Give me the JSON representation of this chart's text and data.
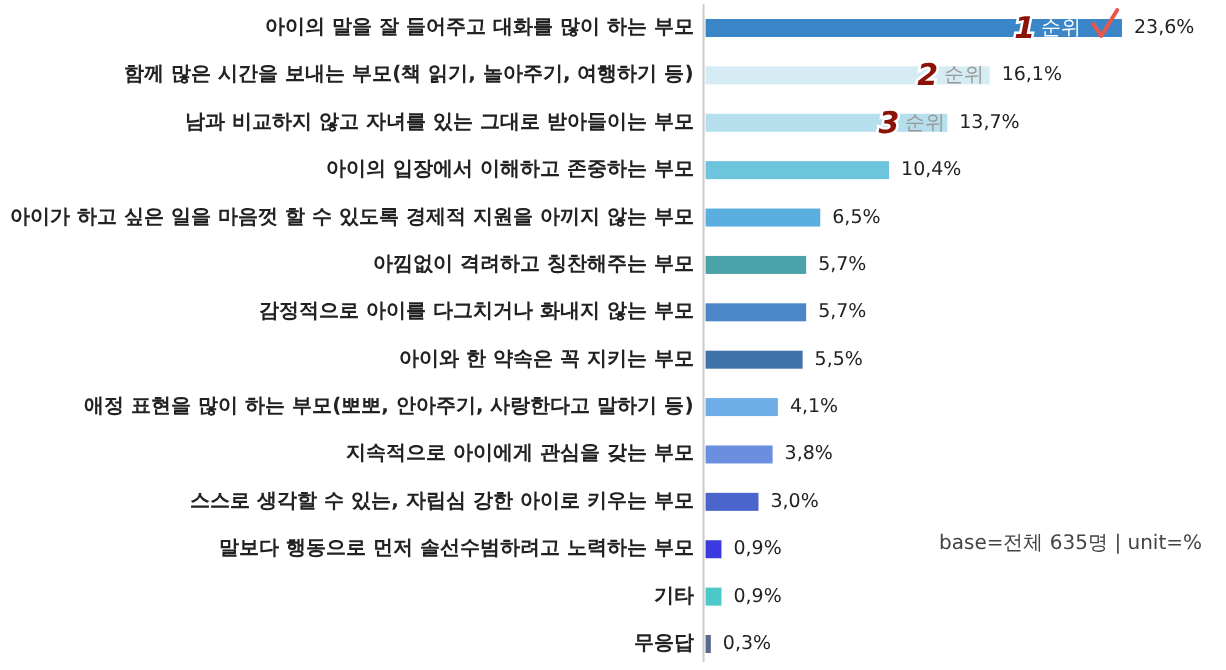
{
  "chart_data": {
    "type": "bar",
    "orientation": "horizontal",
    "categories": [
      "아이의 말을 잘 들어주고 대화를 많이 하는 부모",
      "함께 많은 시간을 보내는 부모(책 읽기, 놀아주기, 여행하기 등)",
      "남과 비교하지 않고 자녀를 있는 그대로 받아들이는 부모",
      "아이의 입장에서 이해하고 존중하는 부모",
      "아이가 하고 싶은 일을 마음껏 할 수 있도록 경제적 지원을 아끼지 않는 부모",
      "아낌없이 격려하고 칭찬해주는 부모",
      "감정적으로 아이를 다그치거나 화내지 않는 부모",
      "아이와 한 약속은 꼭 지키는 부모",
      "애정 표현을 많이 하는 부모(뽀뽀, 안아주기, 사랑한다고 말하기 등)",
      "지속적으로 아이에게 관심을 갖는 부모",
      "스스로 생각할 수 있는, 자립심 강한 아이로 키우는 부모",
      "말보다 행동으로 먼저 솔선수범하려고 노력하는 부모",
      "기타",
      "무응답"
    ],
    "values": [
      23.6,
      16.1,
      13.7,
      10.4,
      6.5,
      5.7,
      5.7,
      5.5,
      4.1,
      3.8,
      3.0,
      0.9,
      0.9,
      0.3
    ],
    "value_labels": [
      "23,6%",
      "16,1%",
      "13,7%",
      "10,4%",
      "6,5%",
      "5,7%",
      "5,7%",
      "5,5%",
      "4,1%",
      "3,8%",
      "3,0%",
      "0,9%",
      "0,9%",
      "0,3%"
    ],
    "colors": [
      "#3a86c8",
      "#d6ecf5",
      "#b5dfec",
      "#6cc5dc",
      "#5aaee0",
      "#4aa3a8",
      "#4a86c8",
      "#3f72a8",
      "#6eaee8",
      "#6a8ee0",
      "#4a66cc",
      "#3a3ae0",
      "#4cc8c8",
      "#5a6a8a"
    ],
    "annotations": [
      {
        "text": "1 순위",
        "x": 17.5,
        "y": "아이의 말을 잘 들어주고 대화를 많이 하는 부모"
      },
      {
        "text": "2 순위",
        "x": 12,
        "y": "함께 많은 시간을 보내는 부모(책 읽기, 놀아주기, 여행하기 등)"
      },
      {
        "text": "3 순위",
        "x": 9.8,
        "y": "남과 비교하지 않고 자녀를 있는 그대로 받아들이는 부모"
      },
      "base=전체 635명 | unit=%"
    ]
  }
}
